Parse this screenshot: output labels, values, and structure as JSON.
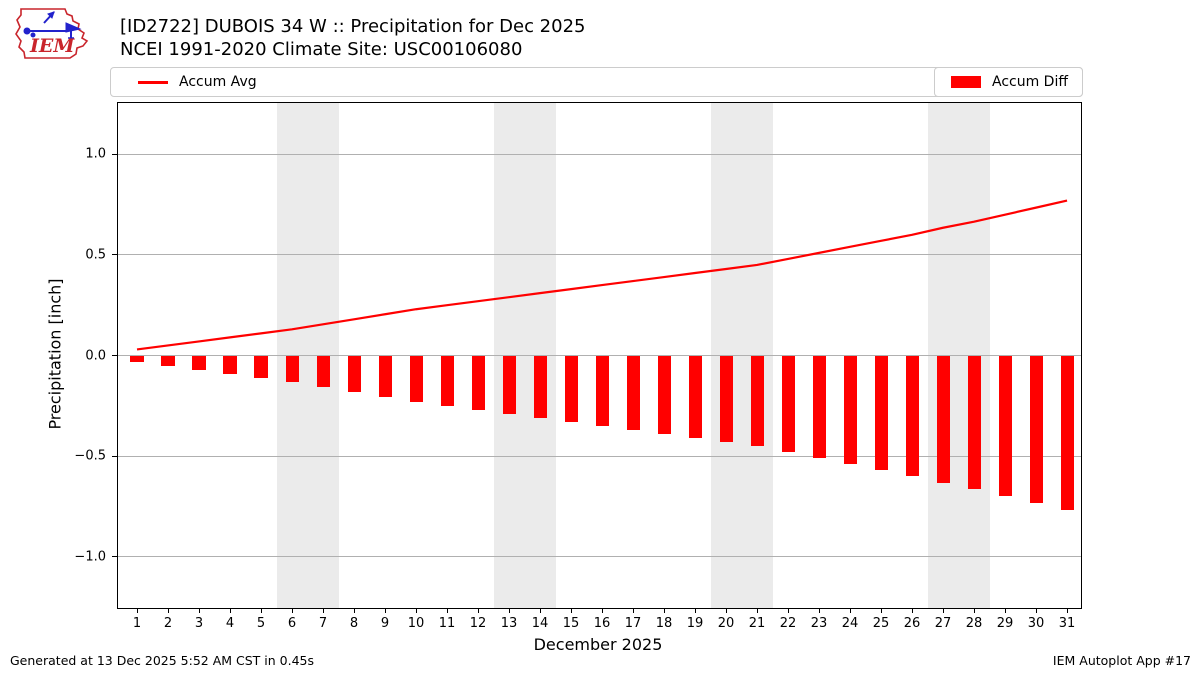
{
  "header": {
    "logo_text": "IEM",
    "title_line1": "[ID2722] DUBOIS 34 W :: Precipitation for Dec 2025",
    "title_line2": "NCEI 1991-2020 Climate Site: USC00106080"
  },
  "legend": {
    "accum_avg": "Accum Avg",
    "accum_diff": "Accum Diff"
  },
  "footer": {
    "generated": "Generated at 13 Dec 2025 5:52 AM CST in 0.45s",
    "app_ref": "IEM Autoplot App #17"
  },
  "colors": {
    "accent_red": "#ff0000",
    "weekend_band": "#ebebeb",
    "gridline": "#b0b0b0",
    "spine": "#000000",
    "legend_border": "#cccccc",
    "logo_red": "#c9252c",
    "logo_blue": "#2222cc"
  },
  "chart_data": {
    "type": "line+bar",
    "title": "[ID2722] DUBOIS 34 W :: Precipitation for Dec 2025",
    "subtitle": "NCEI 1991-2020 Climate Site: USC00106080",
    "xlabel": "December 2025",
    "ylabel": "Precipitation [inch]",
    "x": [
      1,
      2,
      3,
      4,
      5,
      6,
      7,
      8,
      9,
      10,
      11,
      12,
      13,
      14,
      15,
      16,
      17,
      18,
      19,
      20,
      21,
      22,
      23,
      24,
      25,
      26,
      27,
      28,
      29,
      30,
      31
    ],
    "series": [
      {
        "name": "Accum Avg",
        "type": "line",
        "color": "#ff0000",
        "values": [
          0.03,
          0.05,
          0.07,
          0.09,
          0.11,
          0.13,
          0.155,
          0.18,
          0.205,
          0.23,
          0.25,
          0.27,
          0.29,
          0.31,
          0.33,
          0.35,
          0.37,
          0.39,
          0.41,
          0.43,
          0.45,
          0.48,
          0.51,
          0.54,
          0.57,
          0.6,
          0.635,
          0.665,
          0.7,
          0.735,
          0.77
        ]
      },
      {
        "name": "Accum Diff",
        "type": "bar",
        "color": "#ff0000",
        "values": [
          -0.03,
          -0.05,
          -0.07,
          -0.09,
          -0.11,
          -0.13,
          -0.155,
          -0.18,
          -0.205,
          -0.23,
          -0.25,
          -0.27,
          -0.29,
          -0.31,
          -0.33,
          -0.35,
          -0.37,
          -0.39,
          -0.41,
          -0.43,
          -0.45,
          -0.48,
          -0.51,
          -0.54,
          -0.57,
          -0.6,
          -0.635,
          -0.665,
          -0.7,
          -0.735,
          -0.77
        ]
      }
    ],
    "ylim": [
      -1.255,
      1.255
    ],
    "xlim": [
      0.387,
      31.45
    ],
    "yticks": [
      1.0,
      0.5,
      0.0,
      -0.5,
      -1.0
    ],
    "ytick_labels": [
      "1.0",
      "0.5",
      "0.0",
      "−0.5",
      "−1.0"
    ],
    "weekend_bands": [
      [
        5.5,
        7.5
      ],
      [
        12.5,
        14.5
      ],
      [
        19.5,
        21.5
      ],
      [
        26.5,
        28.5
      ]
    ],
    "grid": "horizontal",
    "bar_width_days": 0.42,
    "legend_position": "top row: Accum Avg left, Accum Diff right"
  }
}
